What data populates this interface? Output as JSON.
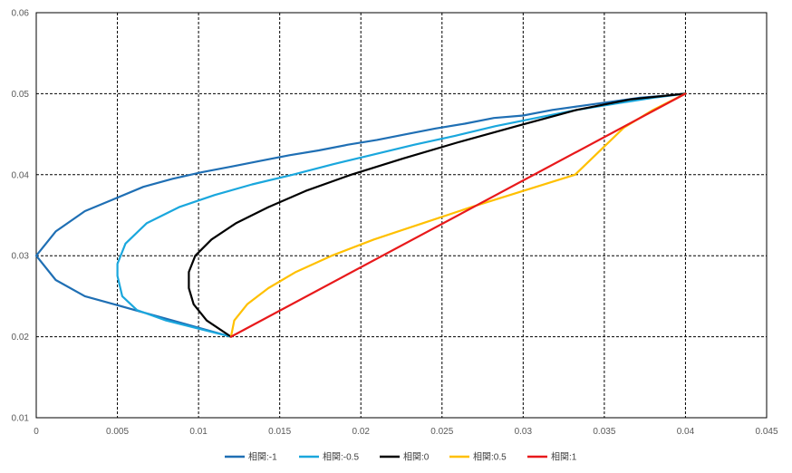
{
  "chart_data": {
    "type": "line",
    "title": "",
    "xlabel": "",
    "ylabel": "",
    "xlim": [
      0,
      0.045
    ],
    "ylim": [
      0.01,
      0.06
    ],
    "x_ticks": [
      "0",
      "0.005",
      "0.01",
      "0.015",
      "0.02",
      "0.025",
      "0.03",
      "0.035",
      "0.04",
      "0.045"
    ],
    "y_ticks": [
      "0.01",
      "0.02",
      "0.03",
      "0.04",
      "0.05",
      "0.06"
    ],
    "grid": true,
    "legend_position": "bottom",
    "series": [
      {
        "name": "相関:-1",
        "color": "#1f6fb4",
        "points": [
          [
            0.012,
            0.02
          ],
          [
            0.0102,
            0.021
          ],
          [
            0.0084,
            0.022
          ],
          [
            0.0066,
            0.023
          ],
          [
            0.0048,
            0.024
          ],
          [
            0.003,
            0.025
          ],
          [
            0.0012,
            0.027
          ],
          [
            0.0,
            0.03
          ],
          [
            0.0012,
            0.033
          ],
          [
            0.003,
            0.0355
          ],
          [
            0.0048,
            0.037
          ],
          [
            0.0066,
            0.0385
          ],
          [
            0.0084,
            0.0395
          ],
          [
            0.0102,
            0.0403
          ],
          [
            0.012,
            0.041
          ],
          [
            0.0138,
            0.0417
          ],
          [
            0.0156,
            0.0424
          ],
          [
            0.0174,
            0.043
          ],
          [
            0.0192,
            0.0437
          ],
          [
            0.021,
            0.0443
          ],
          [
            0.0228,
            0.045
          ],
          [
            0.0246,
            0.0457
          ],
          [
            0.0264,
            0.0463
          ],
          [
            0.0282,
            0.047
          ],
          [
            0.03,
            0.0473
          ],
          [
            0.0318,
            0.048
          ],
          [
            0.0336,
            0.0485
          ],
          [
            0.0354,
            0.049
          ],
          [
            0.0372,
            0.0495
          ],
          [
            0.039,
            0.0498
          ],
          [
            0.04,
            0.05
          ]
        ]
      },
      {
        "name": "相関:-0.5",
        "color": "#1aa7dd",
        "points": [
          [
            0.012,
            0.02
          ],
          [
            0.01,
            0.021
          ],
          [
            0.008,
            0.022
          ],
          [
            0.0062,
            0.0233
          ],
          [
            0.0053,
            0.025
          ],
          [
            0.005,
            0.0275
          ],
          [
            0.005,
            0.029
          ],
          [
            0.0055,
            0.0315
          ],
          [
            0.0068,
            0.034
          ],
          [
            0.0088,
            0.036
          ],
          [
            0.011,
            0.0375
          ],
          [
            0.0133,
            0.0388
          ],
          [
            0.0158,
            0.04
          ],
          [
            0.0183,
            0.0413
          ],
          [
            0.0208,
            0.0425
          ],
          [
            0.0233,
            0.0437
          ],
          [
            0.0258,
            0.0448
          ],
          [
            0.0283,
            0.046
          ],
          [
            0.0308,
            0.047
          ],
          [
            0.0333,
            0.048
          ],
          [
            0.0358,
            0.0488
          ],
          [
            0.038,
            0.0495
          ],
          [
            0.04,
            0.05
          ]
        ]
      },
      {
        "name": "相関:0",
        "color": "#000000",
        "points": [
          [
            0.012,
            0.02
          ],
          [
            0.0105,
            0.022
          ],
          [
            0.0097,
            0.024
          ],
          [
            0.0094,
            0.026
          ],
          [
            0.0094,
            0.028
          ],
          [
            0.0098,
            0.03
          ],
          [
            0.0108,
            0.032
          ],
          [
            0.0123,
            0.034
          ],
          [
            0.0143,
            0.036
          ],
          [
            0.0166,
            0.038
          ],
          [
            0.0194,
            0.04
          ],
          [
            0.0226,
            0.042
          ],
          [
            0.026,
            0.044
          ],
          [
            0.0296,
            0.046
          ],
          [
            0.0333,
            0.048
          ],
          [
            0.0366,
            0.0493
          ],
          [
            0.04,
            0.05
          ]
        ]
      },
      {
        "name": "相関:0.5",
        "color": "#ffc000",
        "points": [
          [
            0.012,
            0.02
          ],
          [
            0.0122,
            0.022
          ],
          [
            0.013,
            0.024
          ],
          [
            0.0143,
            0.026
          ],
          [
            0.016,
            0.028
          ],
          [
            0.0182,
            0.03
          ],
          [
            0.0208,
            0.032
          ],
          [
            0.0238,
            0.034
          ],
          [
            0.0268,
            0.036
          ],
          [
            0.03,
            0.038
          ],
          [
            0.0332,
            0.04
          ],
          [
            0.0362,
            0.0458
          ],
          [
            0.038,
            0.048
          ],
          [
            0.04,
            0.05
          ]
        ]
      },
      {
        "name": "相関:1",
        "color": "#e8191b",
        "points": [
          [
            0.012,
            0.02
          ],
          [
            0.04,
            0.05
          ]
        ]
      }
    ]
  }
}
